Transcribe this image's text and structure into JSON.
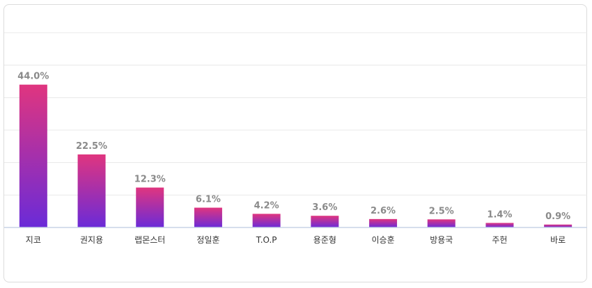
{
  "chart_data": {
    "type": "bar",
    "categories": [
      "지코",
      "권지용",
      "랩몬스터",
      "정일훈",
      "T.O.P",
      "용준형",
      "이승훈",
      "방용국",
      "주헌",
      "바로"
    ],
    "values": [
      44.0,
      22.5,
      12.3,
      6.1,
      4.2,
      3.6,
      2.6,
      2.5,
      1.4,
      0.9
    ],
    "value_labels": [
      "44.0%",
      "22.5%",
      "12.3%",
      "6.1%",
      "4.2%",
      "3.6%",
      "2.6%",
      "2.5%",
      "1.4%",
      "0.9%"
    ],
    "title": "",
    "xlabel": "",
    "ylabel": "",
    "ylim": [
      0,
      60
    ],
    "grid": true,
    "legend": "none",
    "colors": {
      "bar_top": "#e0357f",
      "bar_bottom": "#6a2bd8",
      "grid": "#e8e8e8",
      "axis": "#c9d4e6"
    }
  }
}
